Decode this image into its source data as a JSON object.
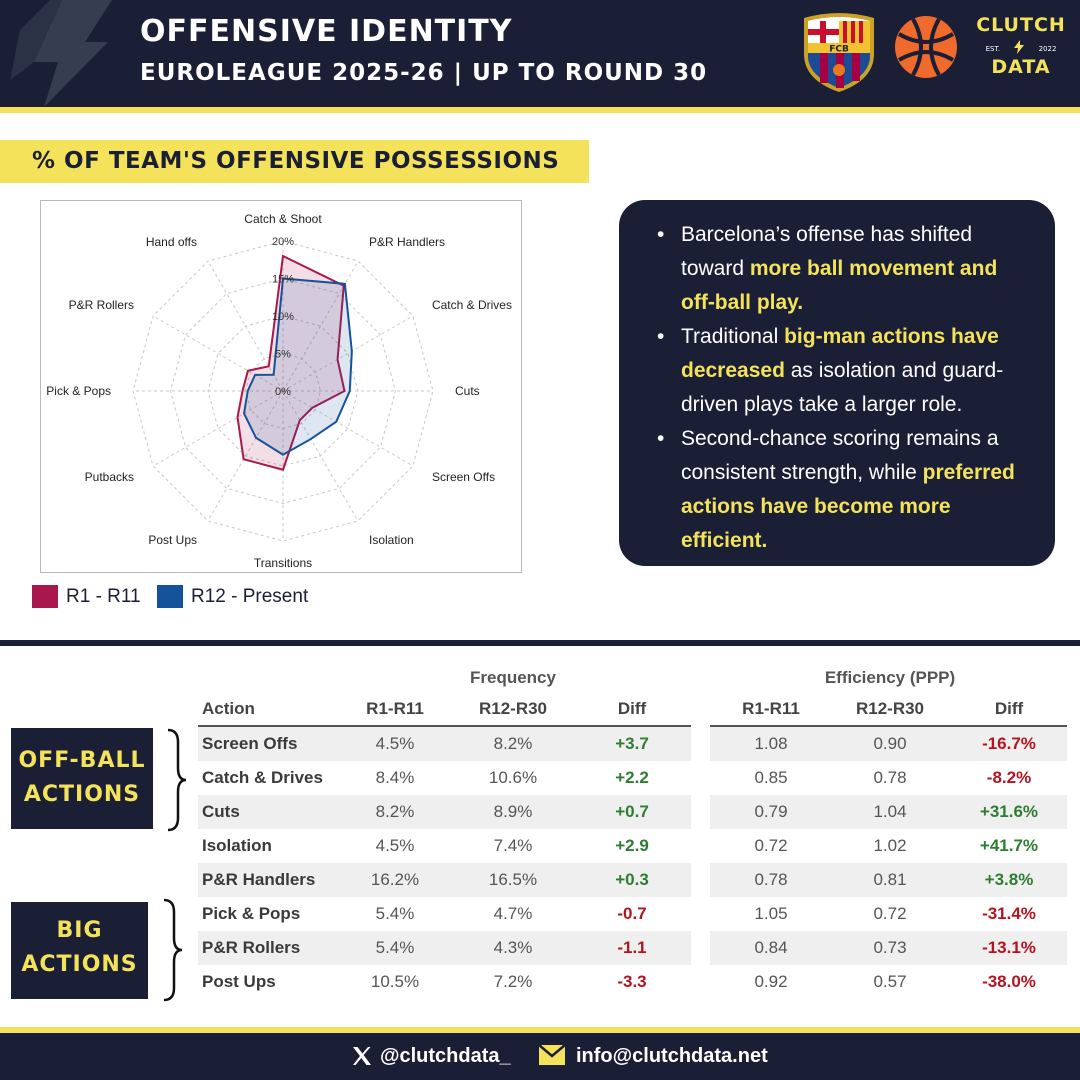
{
  "header": {
    "title": "Offensive Identity",
    "subtitle": "Euroleague 2025-26 | Up to Round 30",
    "fcb_logo_text": "FCB",
    "brand_top": "CLUTCH",
    "brand_est_left": "EST.",
    "brand_est_right": "2022",
    "brand_bottom": "DATA",
    "colors": {
      "navy": "#1a1f36",
      "yellow": "#f4e35a",
      "orange": "#ef6a2b"
    }
  },
  "section": {
    "title": "% of team's offensive possessions"
  },
  "chart_data": {
    "type": "radar",
    "axes": [
      "Catch & Shoot",
      "P&R Handlers",
      "Catch & Drives",
      "Cuts",
      "Screen Offs",
      "Isolation",
      "Transitions",
      "Post Ups",
      "Putbacks",
      "Pick & Pops",
      "P&R Rollers",
      "Hand offs"
    ],
    "tick_labels": [
      "0%",
      "5%",
      "10%",
      "15%",
      "20%"
    ],
    "ticks": [
      0,
      5,
      10,
      15,
      20
    ],
    "rmax": 20,
    "grid": true,
    "legend_position": "bottom-left",
    "series": [
      {
        "name": "R1 - R11",
        "color": "#a8184c",
        "values": [
          18.0,
          16.2,
          8.4,
          8.2,
          4.5,
          4.5,
          10.5,
          10.5,
          7.0,
          5.4,
          5.4,
          3.8
        ]
      },
      {
        "name": "R12 - Present",
        "color": "#14529a",
        "values": [
          15.0,
          16.5,
          10.6,
          8.9,
          8.2,
          7.4,
          8.5,
          7.2,
          6.0,
          4.7,
          4.3,
          2.5
        ]
      }
    ]
  },
  "insights": [
    [
      {
        "t": "Barcelona’s offense has shifted toward "
      },
      {
        "t": "more ball movement and off-ball play.",
        "hl": true
      }
    ],
    [
      {
        "t": "Traditional "
      },
      {
        "t": "big-man actions have decreased",
        "hl": true
      },
      {
        "t": " as isolation and guard-driven plays take a larger role."
      }
    ],
    [
      {
        "t": "Second-chance scoring remains a consistent strength, while "
      },
      {
        "t": "preferred actions have become more efficient.",
        "hl": true
      }
    ]
  ],
  "groups": {
    "off_ball": [
      "Off-Ball",
      "Actions"
    ],
    "big": [
      "Big",
      "Actions"
    ]
  },
  "table": {
    "frequency_header": "Frequency",
    "efficiency_header": "Efficiency (PPP)",
    "columns": {
      "action": "Action",
      "f1": "R1-R11",
      "f2": "R12-R30",
      "fd": "Diff",
      "e1": "R1-R11",
      "e2": "R12-R30",
      "ed": "Diff"
    },
    "rows": [
      {
        "action": "Screen Offs",
        "f1": "4.5%",
        "f2": "8.2%",
        "fd": "+3.7",
        "e1": "1.08",
        "e2": "0.90",
        "ed": "-16.7%"
      },
      {
        "action": "Catch & Drives",
        "f1": "8.4%",
        "f2": "10.6%",
        "fd": "+2.2",
        "e1": "0.85",
        "e2": "0.78",
        "ed": "-8.2%"
      },
      {
        "action": "Cuts",
        "f1": "8.2%",
        "f2": "8.9%",
        "fd": "+0.7",
        "e1": "0.79",
        "e2": "1.04",
        "ed": "+31.6%"
      },
      {
        "action": "Isolation",
        "f1": "4.5%",
        "f2": "7.4%",
        "fd": "+2.9",
        "e1": "0.72",
        "e2": "1.02",
        "ed": "+41.7%"
      },
      {
        "action": "P&R Handlers",
        "f1": "16.2%",
        "f2": "16.5%",
        "fd": "+0.3",
        "e1": "0.78",
        "e2": "0.81",
        "ed": "+3.8%"
      },
      {
        "action": "Pick & Pops",
        "f1": "5.4%",
        "f2": "4.7%",
        "fd": "-0.7",
        "e1": "1.05",
        "e2": "0.72",
        "ed": "-31.4%"
      },
      {
        "action": "P&R Rollers",
        "f1": "5.4%",
        "f2": "4.3%",
        "fd": "-1.1",
        "e1": "0.84",
        "e2": "0.73",
        "ed": "-13.1%"
      },
      {
        "action": "Post Ups",
        "f1": "10.5%",
        "f2": "7.2%",
        "fd": "-3.3",
        "e1": "0.92",
        "e2": "0.57",
        "ed": "-38.0%"
      }
    ]
  },
  "footer": {
    "twitter": "@clutchdata_",
    "email": "info@clutchdata.net"
  }
}
